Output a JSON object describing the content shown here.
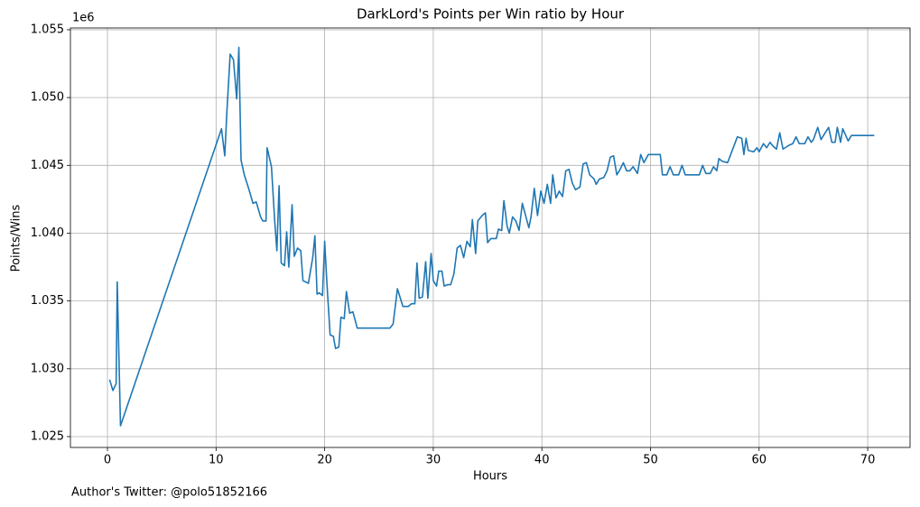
{
  "chart_data": {
    "type": "line",
    "title": "DarkLord's Points per Win ratio by Hour",
    "xlabel": "Hours",
    "ylabel": "Points/Wins",
    "y_offset_label": "1e6",
    "annotation": "Author's Twitter: @polo51852166",
    "grid": true,
    "xlim": [
      -3.41,
      73.9
    ],
    "xticks": [
      0,
      10,
      20,
      30,
      40,
      50,
      60,
      70
    ],
    "ylim": [
      1.0242,
      1.05513
    ],
    "yticks": [
      1.025,
      {
        "value": 1.03,
        "label": "1.030"
      },
      1.035,
      {
        "value": 1.04,
        "label": "1.040"
      },
      1.045,
      {
        "value": 1.05,
        "label": "1.050"
      },
      1.055
    ],
    "x": [
      0.2,
      0.5,
      0.8,
      0.9,
      1.2,
      10.5,
      10.8,
      11.0,
      11.3,
      11.6,
      11.9,
      12.1,
      12.3,
      12.6,
      13.0,
      13.4,
      13.7,
      14.1,
      14.3,
      14.6,
      14.7,
      15.1,
      15.4,
      15.6,
      15.8,
      16.0,
      16.3,
      16.5,
      16.7,
      17.0,
      17.2,
      17.5,
      17.8,
      18.0,
      18.5,
      18.9,
      19.1,
      19.3,
      19.5,
      19.8,
      20.0,
      20.2,
      20.5,
      20.8,
      21.0,
      21.3,
      21.5,
      21.8,
      22.0,
      22.3,
      22.6,
      23.0,
      26.0,
      26.3,
      26.7,
      27.2,
      27.7,
      28.0,
      28.3,
      28.5,
      28.7,
      29.0,
      29.3,
      29.5,
      29.8,
      30.0,
      30.3,
      30.5,
      30.8,
      31.0,
      31.3,
      31.6,
      31.9,
      32.2,
      32.5,
      32.8,
      33.1,
      33.4,
      33.6,
      33.9,
      34.1,
      34.5,
      34.8,
      35.0,
      35.3,
      35.8,
      36.0,
      36.3,
      36.5,
      36.8,
      37.0,
      37.3,
      37.6,
      37.9,
      38.2,
      38.5,
      38.8,
      39.0,
      39.3,
      39.6,
      39.9,
      40.2,
      40.5,
      40.8,
      41.0,
      41.3,
      41.6,
      41.9,
      42.2,
      42.5,
      42.8,
      43.1,
      43.5,
      43.8,
      44.1,
      44.4,
      44.8,
      45.0,
      45.3,
      45.7,
      46.0,
      46.3,
      46.6,
      46.9,
      47.2,
      47.5,
      47.8,
      48.1,
      48.4,
      48.8,
      49.1,
      49.4,
      49.8,
      50.9,
      51.1,
      51.5,
      51.8,
      52.1,
      52.6,
      52.9,
      53.2,
      54.5,
      54.8,
      55.1,
      55.5,
      55.8,
      56.1,
      56.3,
      56.6,
      57.1,
      58.0,
      58.4,
      58.6,
      58.8,
      59.0,
      59.5,
      59.8,
      60.0,
      60.4,
      60.7,
      61.0,
      61.3,
      61.6,
      61.9,
      62.2,
      62.8,
      63.1,
      63.4,
      63.7,
      64.2,
      64.5,
      64.8,
      65.0,
      65.4,
      65.7,
      66.4,
      66.7,
      67.0,
      67.2,
      67.5,
      67.7,
      68.2,
      68.5,
      70.6
    ],
    "series": [
      {
        "name": "Points/Wins",
        "color": "#1f77b4",
        "values": [
          1.0292,
          1.0284,
          1.0289,
          1.0364,
          1.0258,
          1.0477,
          1.0457,
          1.049,
          1.0532,
          1.0528,
          1.0499,
          1.0537,
          1.0454,
          1.0443,
          1.0433,
          1.0422,
          1.0423,
          1.0412,
          1.0409,
          1.0409,
          1.0463,
          1.0449,
          1.0409,
          1.0387,
          1.0435,
          1.0378,
          1.0376,
          1.0401,
          1.0375,
          1.0421,
          1.0383,
          1.0389,
          1.0387,
          1.0365,
          1.0363,
          1.0382,
          1.0398,
          1.0355,
          1.0356,
          1.0354,
          1.0394,
          1.0364,
          1.0325,
          1.0324,
          1.0315,
          1.0316,
          1.0338,
          1.0337,
          1.0357,
          1.0341,
          1.0342,
          1.033,
          1.033,
          1.0333,
          1.0359,
          1.0346,
          1.0346,
          1.0348,
          1.0348,
          1.0378,
          1.0352,
          1.0353,
          1.0379,
          1.0352,
          1.0385,
          1.0365,
          1.0361,
          1.0372,
          1.0372,
          1.0361,
          1.0362,
          1.0362,
          1.037,
          1.0389,
          1.0391,
          1.0382,
          1.0394,
          1.039,
          1.041,
          1.0385,
          1.0409,
          1.0413,
          1.0415,
          1.0393,
          1.0396,
          1.0396,
          1.0403,
          1.0402,
          1.0424,
          1.0405,
          1.04,
          1.0412,
          1.0409,
          1.0402,
          1.0422,
          1.0413,
          1.0404,
          1.0412,
          1.0433,
          1.0413,
          1.0431,
          1.0422,
          1.0436,
          1.0422,
          1.0443,
          1.0426,
          1.0431,
          1.0427,
          1.0446,
          1.0447,
          1.0437,
          1.0432,
          1.0434,
          1.0451,
          1.0452,
          1.0443,
          1.044,
          1.0436,
          1.044,
          1.0441,
          1.0446,
          1.0456,
          1.0457,
          1.0443,
          1.0447,
          1.0452,
          1.0446,
          1.0446,
          1.0449,
          1.0444,
          1.0458,
          1.0452,
          1.0458,
          1.0458,
          1.0443,
          1.0443,
          1.0449,
          1.0443,
          1.0443,
          1.045,
          1.0443,
          1.0443,
          1.045,
          1.0444,
          1.0444,
          1.0449,
          1.0446,
          1.0455,
          1.0453,
          1.0452,
          1.0471,
          1.047,
          1.0458,
          1.047,
          1.0461,
          1.046,
          1.0463,
          1.046,
          1.0466,
          1.0463,
          1.0467,
          1.0464,
          1.0462,
          1.0474,
          1.0462,
          1.0465,
          1.0466,
          1.0471,
          1.0466,
          1.0466,
          1.0471,
          1.0467,
          1.0469,
          1.0478,
          1.0469,
          1.0478,
          1.0467,
          1.0467,
          1.0478,
          1.0467,
          1.0477,
          1.0468,
          1.0472,
          1.0472
        ]
      }
    ]
  }
}
